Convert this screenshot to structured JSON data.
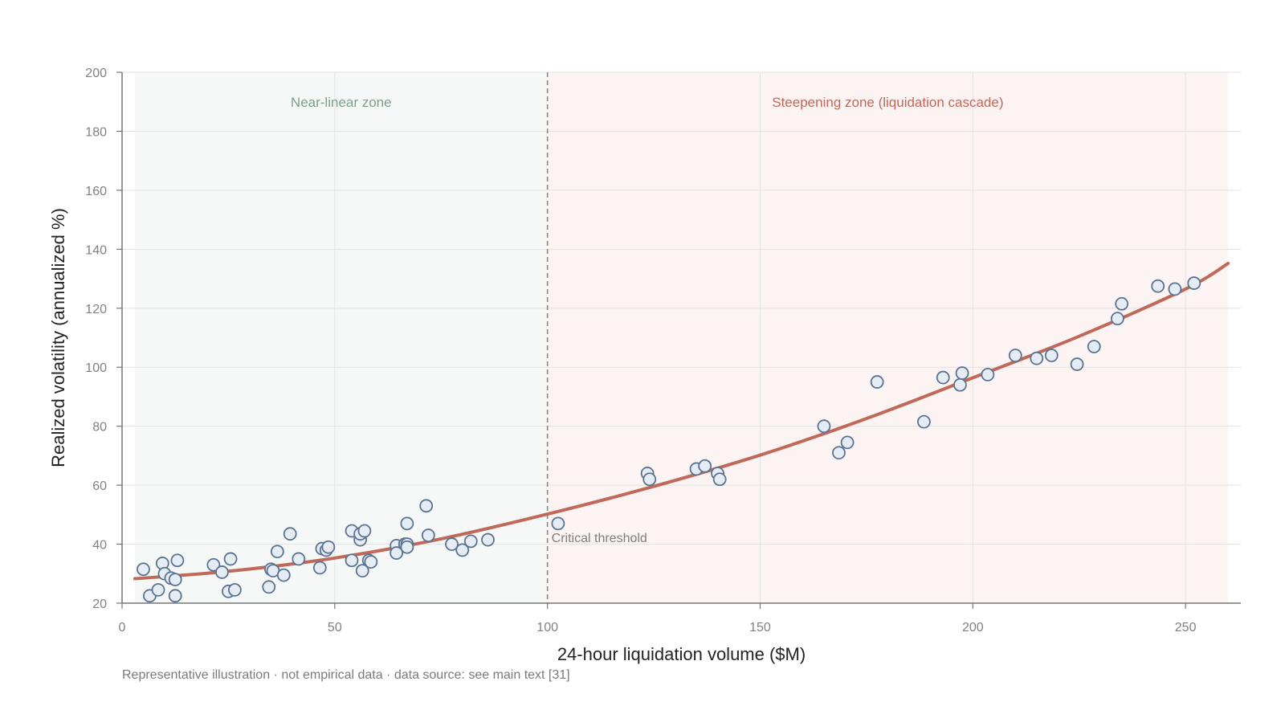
{
  "chart_data": {
    "type": "scatter",
    "title": "",
    "xlabel": "24-hour liquidation volume ($M)",
    "ylabel": "Realized volatility (annualized %)",
    "xlim": [
      0,
      263
    ],
    "ylim": [
      20,
      200
    ],
    "x_ticks": [
      0,
      50,
      100,
      150,
      200,
      250
    ],
    "y_ticks": [
      20,
      40,
      60,
      80,
      100,
      120,
      140,
      160,
      180,
      200
    ],
    "grid": true,
    "zones": [
      {
        "label": "Near-linear zone",
        "x_start": 3,
        "x_end": 100,
        "fill": "#f5f8f6",
        "label_color": "#7f9e88"
      },
      {
        "label": "Steepening zone (liquidation cascade)",
        "x_start": 100,
        "x_end": 260,
        "fill": "#fbf4f3",
        "label_color": "#c0695a"
      }
    ],
    "threshold": {
      "x": 100,
      "label": "Critical threshold"
    },
    "fit_curve": {
      "color": "#c0695a",
      "points": [
        [
          3,
          28.3
        ],
        [
          25,
          30.8
        ],
        [
          50,
          35.3
        ],
        [
          75,
          41.8
        ],
        [
          100,
          50.2
        ],
        [
          125,
          59.6
        ],
        [
          150,
          70.2
        ],
        [
          175,
          82.6
        ],
        [
          200,
          96.4
        ],
        [
          225,
          110.5
        ],
        [
          250,
          126.5
        ],
        [
          260,
          135.2
        ]
      ]
    },
    "series": [
      {
        "marker_fill": "#e6ecf4",
        "marker_stroke": "#5a7390",
        "points": [
          [
            5,
            31.5
          ],
          [
            6.5,
            22.5
          ],
          [
            8.5,
            24.5
          ],
          [
            9.5,
            33.5
          ],
          [
            10,
            30
          ],
          [
            11.5,
            28.5
          ],
          [
            12.5,
            22.5
          ],
          [
            12.5,
            28
          ],
          [
            13,
            34.5
          ],
          [
            21.5,
            33
          ],
          [
            23.5,
            30.5
          ],
          [
            25,
            24
          ],
          [
            25.5,
            35
          ],
          [
            26.5,
            24.5
          ],
          [
            34.5,
            25.5
          ],
          [
            35,
            31.5
          ],
          [
            35.5,
            31
          ],
          [
            36.5,
            37.5
          ],
          [
            38,
            29.5
          ],
          [
            39.5,
            43.5
          ],
          [
            41.5,
            35
          ],
          [
            46.5,
            32
          ],
          [
            47,
            38.5
          ],
          [
            48,
            38
          ],
          [
            48.5,
            39
          ],
          [
            54,
            44.5
          ],
          [
            54,
            34.5
          ],
          [
            56,
            41.5
          ],
          [
            56,
            43.5
          ],
          [
            56.5,
            31
          ],
          [
            57,
            44.5
          ],
          [
            58,
            34.5
          ],
          [
            58.5,
            34
          ],
          [
            64.5,
            39.5
          ],
          [
            64.5,
            37
          ],
          [
            66.5,
            40
          ],
          [
            67,
            40
          ],
          [
            67,
            39
          ],
          [
            67,
            47
          ],
          [
            71.5,
            53
          ],
          [
            72,
            43
          ],
          [
            77.5,
            40
          ],
          [
            80,
            38
          ],
          [
            82,
            41
          ],
          [
            86,
            41.5
          ],
          [
            102.5,
            47
          ],
          [
            123.5,
            64
          ],
          [
            124,
            62
          ],
          [
            135,
            65.5
          ],
          [
            137,
            66.5
          ],
          [
            140,
            64
          ],
          [
            140.5,
            62
          ],
          [
            165,
            80
          ],
          [
            168.5,
            71
          ],
          [
            170.5,
            74.5
          ],
          [
            177.5,
            95
          ],
          [
            188.5,
            81.5
          ],
          [
            193,
            96.5
          ],
          [
            197,
            94
          ],
          [
            197.5,
            98
          ],
          [
            203.5,
            97.5
          ],
          [
            210,
            104
          ],
          [
            215,
            103
          ],
          [
            218.5,
            104
          ],
          [
            224.5,
            101
          ],
          [
            228.5,
            107
          ],
          [
            234,
            116.5
          ],
          [
            235,
            121.5
          ],
          [
            243.5,
            127.5
          ],
          [
            247.5,
            126.5
          ],
          [
            252,
            128.5
          ]
        ]
      }
    ]
  },
  "footnote": "Representative illustration · not empirical data · data source: see main text [31]"
}
